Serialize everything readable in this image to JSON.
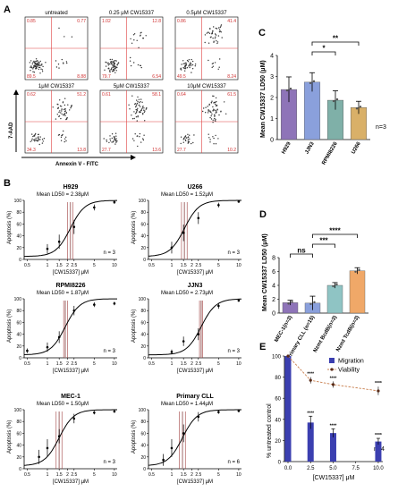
{
  "panels": {
    "a": "A",
    "b": "B",
    "c": "C",
    "d": "D",
    "e": "E"
  },
  "panel_a": {
    "ylabel": "7-AAD",
    "xlabel": "Annexin V - FITC",
    "plots": [
      {
        "title": "untreated",
        "quadrants": [
          "0.85",
          "0.77",
          "89.5",
          "8.88"
        ]
      },
      {
        "title": "0.25 μM CW15337",
        "quadrants": [
          "1.02",
          "12.8",
          "79.7",
          "6.54"
        ]
      },
      {
        "title": "0.5μM CW15337",
        "quadrants": [
          "0.86",
          "41.4",
          "49.5",
          "8.24"
        ]
      },
      {
        "title": "1μM CW15337",
        "quadrants": [
          "0.62",
          "51.2",
          "34.3",
          "13.8"
        ]
      },
      {
        "title": "5μM CW15337",
        "quadrants": [
          "0.61",
          "58.1",
          "27.7",
          "13.6"
        ]
      },
      {
        "title": "10μM CW15337",
        "quadrants": [
          "0.64",
          "61.5",
          "27.7",
          "10.2"
        ]
      }
    ]
  },
  "chart_data": [
    {
      "id": "B-H929",
      "type": "line",
      "title": "H929",
      "subtitle": "Mean LD50 = 2.38μM",
      "xlabel": "[CW15337] μM",
      "ylabel": "Apoptosis (%)",
      "x_ticks": [
        "0.5",
        "1",
        "1.5",
        "2",
        "2.5",
        "5",
        "10"
      ],
      "y_ticks": [
        "0",
        "20",
        "40",
        "60",
        "80",
        "100"
      ],
      "ylim": [
        0,
        100
      ],
      "n_label": "n = 3",
      "ld50_lines": [
        2.0,
        2.2,
        2.4
      ],
      "points": [
        {
          "x": 1.0,
          "y": 18,
          "err": 8
        },
        {
          "x": 1.5,
          "y": 30,
          "err": 12
        },
        {
          "x": 2.5,
          "y": 55,
          "err": 12
        },
        {
          "x": 5,
          "y": 88,
          "err": 5
        },
        {
          "x": 10,
          "y": 97,
          "err": 3
        }
      ]
    },
    {
      "id": "B-U266",
      "type": "line",
      "title": "U266",
      "subtitle": "Mean LD50 = 1.52μM",
      "xlabel": "[CW15337] μM",
      "ylabel": "Apoptosis (%)",
      "x_ticks": [
        "0.5",
        "1",
        "1.5",
        "2",
        "2.5",
        "5",
        "10"
      ],
      "y_ticks": [
        "0",
        "20",
        "40",
        "60",
        "80",
        "100"
      ],
      "ylim": [
        0,
        100
      ],
      "n_label": "n = 3",
      "ld50_lines": [
        1.4,
        1.55,
        1.7
      ],
      "points": [
        {
          "x": 1.0,
          "y": 20,
          "err": 10
        },
        {
          "x": 1.5,
          "y": 45,
          "err": 14
        },
        {
          "x": 2.5,
          "y": 70,
          "err": 10
        },
        {
          "x": 5,
          "y": 92,
          "err": 4
        },
        {
          "x": 10,
          "y": 98,
          "err": 2
        }
      ]
    },
    {
      "id": "B-RPMI8226",
      "type": "line",
      "title": "RPMI8226",
      "subtitle": "Mean LD50 = 1.87μM",
      "xlabel": "[CW15337] μM",
      "ylabel": "Apoptosis (%)",
      "x_ticks": [
        "0.5",
        "1",
        "1.5",
        "2",
        "2.5",
        "5",
        "10"
      ],
      "y_ticks": [
        "0",
        "20",
        "40",
        "60",
        "80",
        "100"
      ],
      "ylim": [
        0,
        100
      ],
      "n_label": "n = 3",
      "ld50_lines": [
        1.75,
        1.85,
        2.0
      ],
      "points": [
        {
          "x": 0.5,
          "y": 12,
          "err": 4
        },
        {
          "x": 1.0,
          "y": 18,
          "err": 8
        },
        {
          "x": 1.5,
          "y": 35,
          "err": 10
        },
        {
          "x": 2.5,
          "y": 80,
          "err": 8
        },
        {
          "x": 5,
          "y": 90,
          "err": 4
        },
        {
          "x": 10,
          "y": 92,
          "err": 3
        }
      ]
    },
    {
      "id": "B-JJN3",
      "type": "line",
      "title": "JJN3",
      "subtitle": "Mean LD50 = 2.73μM",
      "xlabel": "[CW15337] μM",
      "ylabel": "Apoptosis (%)",
      "x_ticks": [
        "0.5",
        "1",
        "1.5",
        "2",
        "2.5",
        "5",
        "10"
      ],
      "y_ticks": [
        "0",
        "20",
        "40",
        "60",
        "80",
        "100"
      ],
      "ylim": [
        0,
        100
      ],
      "n_label": "n = 3",
      "ld50_lines": [
        2.6,
        2.75,
        2.9
      ],
      "points": [
        {
          "x": 1.0,
          "y": 10,
          "err": 4
        },
        {
          "x": 1.5,
          "y": 28,
          "err": 8
        },
        {
          "x": 2.5,
          "y": 40,
          "err": 10
        },
        {
          "x": 5,
          "y": 88,
          "err": 5
        },
        {
          "x": 10,
          "y": 97,
          "err": 2
        }
      ]
    },
    {
      "id": "B-MEC1",
      "type": "line",
      "title": "MEC-1",
      "subtitle": "Mean LD50 = 1.50μM",
      "xlabel": "[CW15337] μM",
      "ylabel": "Apoptosis (%)",
      "x_ticks": [
        "0.5",
        "1",
        "1.5",
        "2",
        "2.5",
        "5",
        "10"
      ],
      "y_ticks": [
        "0",
        "20",
        "40",
        "60",
        "80",
        "100"
      ],
      "ylim": [
        0,
        100
      ],
      "n_label": "n = 3",
      "ld50_lines": [
        1.35,
        1.5,
        1.65
      ],
      "points": [
        {
          "x": 0.75,
          "y": 20,
          "err": 12
        },
        {
          "x": 1.0,
          "y": 35,
          "err": 15
        },
        {
          "x": 1.5,
          "y": 55,
          "err": 12
        },
        {
          "x": 2.5,
          "y": 85,
          "err": 8
        },
        {
          "x": 5,
          "y": 95,
          "err": 3
        },
        {
          "x": 10,
          "y": 97,
          "err": 2
        }
      ]
    },
    {
      "id": "B-PrimaryCLL",
      "type": "line",
      "title": "Primary CLL",
      "subtitle": "Mean LD50 = 1.44μM",
      "xlabel": "[CW15337] μM",
      "ylabel": "Apoptosis (%)",
      "x_ticks": [
        "0.5",
        "1",
        "1.5",
        "2",
        "2.5",
        "5",
        "10"
      ],
      "y_ticks": [
        "0",
        "20",
        "40",
        "60",
        "80",
        "100"
      ],
      "ylim": [
        0,
        100
      ],
      "n_label": "n = 6",
      "ld50_lines": [
        1.3,
        1.45,
        1.6
      ],
      "points": [
        {
          "x": 0.75,
          "y": 15,
          "err": 10
        },
        {
          "x": 1.0,
          "y": 35,
          "err": 15
        },
        {
          "x": 1.5,
          "y": 60,
          "err": 15
        },
        {
          "x": 2.5,
          "y": 88,
          "err": 8
        },
        {
          "x": 5,
          "y": 96,
          "err": 3
        },
        {
          "x": 10,
          "y": 98,
          "err": 2
        }
      ]
    },
    {
      "id": "C",
      "type": "bar",
      "ylabel": "Mean CW15337 LD50 (μM)",
      "categories": [
        "H929",
        "JJN3",
        "RPMI8226",
        "U266"
      ],
      "values": [
        2.38,
        2.73,
        1.87,
        1.52
      ],
      "errors": [
        0.6,
        0.45,
        0.45,
        0.3
      ],
      "colors": [
        "#8e74b8",
        "#8aa0dc",
        "#7fb0a8",
        "#d9b068"
      ],
      "ylim": [
        0,
        4
      ],
      "y_ticks": [
        "0",
        "1",
        "2",
        "3",
        "4"
      ],
      "n_label": "n=3",
      "significance": [
        {
          "from": 1,
          "to": 2,
          "label": "*"
        },
        {
          "from": 1,
          "to": 3,
          "label": "**"
        }
      ]
    },
    {
      "id": "D",
      "type": "bar",
      "ylabel": "Mean CW15337 LD50 (μM)",
      "categories": [
        "MEC-1(n=3)",
        "Primary CLL (n=15)",
        "Nzmt BcdB(n=3)",
        "Nzmt TcdB(n=3)"
      ],
      "values": [
        1.5,
        1.44,
        4.0,
        6.1
      ],
      "errors": [
        0.35,
        1.0,
        0.4,
        0.45
      ],
      "colors": [
        "#8e74b8",
        "#8aa0dc",
        "#8fc4c4",
        "#f0a868"
      ],
      "ylim": [
        0,
        8
      ],
      "y_ticks": [
        "0",
        "2",
        "4",
        "6",
        "8"
      ],
      "significance": [
        {
          "from": 0,
          "to": 1,
          "label": "ns"
        },
        {
          "from": 1,
          "to": 2,
          "label": "***"
        },
        {
          "from": 1,
          "to": 3,
          "label": "****"
        }
      ]
    },
    {
      "id": "E",
      "type": "bar",
      "xlabel": "[CW15337] μM",
      "ylabel": "% untreated control",
      "x_ticks": [
        "0.0",
        "2.5",
        "5.0",
        "7.5",
        "10.0"
      ],
      "y_ticks": [
        "0",
        "20",
        "40",
        "60",
        "80",
        "100"
      ],
      "xlim": [
        0,
        10.5
      ],
      "ylim": [
        0,
        100
      ],
      "n_label": "n=4",
      "legend": [
        "Migration",
        "Viability"
      ],
      "legend_position": "top-right",
      "series": [
        {
          "name": "Migration",
          "type": "bar",
          "x": [
            0,
            2.5,
            5,
            10
          ],
          "values": [
            100,
            37,
            27,
            19
          ],
          "errors": [
            0,
            6,
            4,
            3
          ],
          "color": "#3b3fb0"
        },
        {
          "name": "Viability",
          "type": "line",
          "x": [
            0,
            2.5,
            5,
            10
          ],
          "values": [
            100,
            77,
            73,
            67
          ],
          "errors": [
            0,
            3,
            3,
            4
          ],
          "color": "#c98050"
        }
      ],
      "significance_labels": [
        {
          "x": 2.5,
          "label": "****",
          "series": "Viability"
        },
        {
          "x": 5,
          "label": "****",
          "series": "Viability"
        },
        {
          "x": 10,
          "label": "****",
          "series": "Viability"
        },
        {
          "x": 2.5,
          "label": "****",
          "series": "Migration"
        },
        {
          "x": 5,
          "label": "****",
          "series": "Migration"
        },
        {
          "x": 10,
          "label": "****",
          "series": "Migration"
        }
      ]
    }
  ]
}
